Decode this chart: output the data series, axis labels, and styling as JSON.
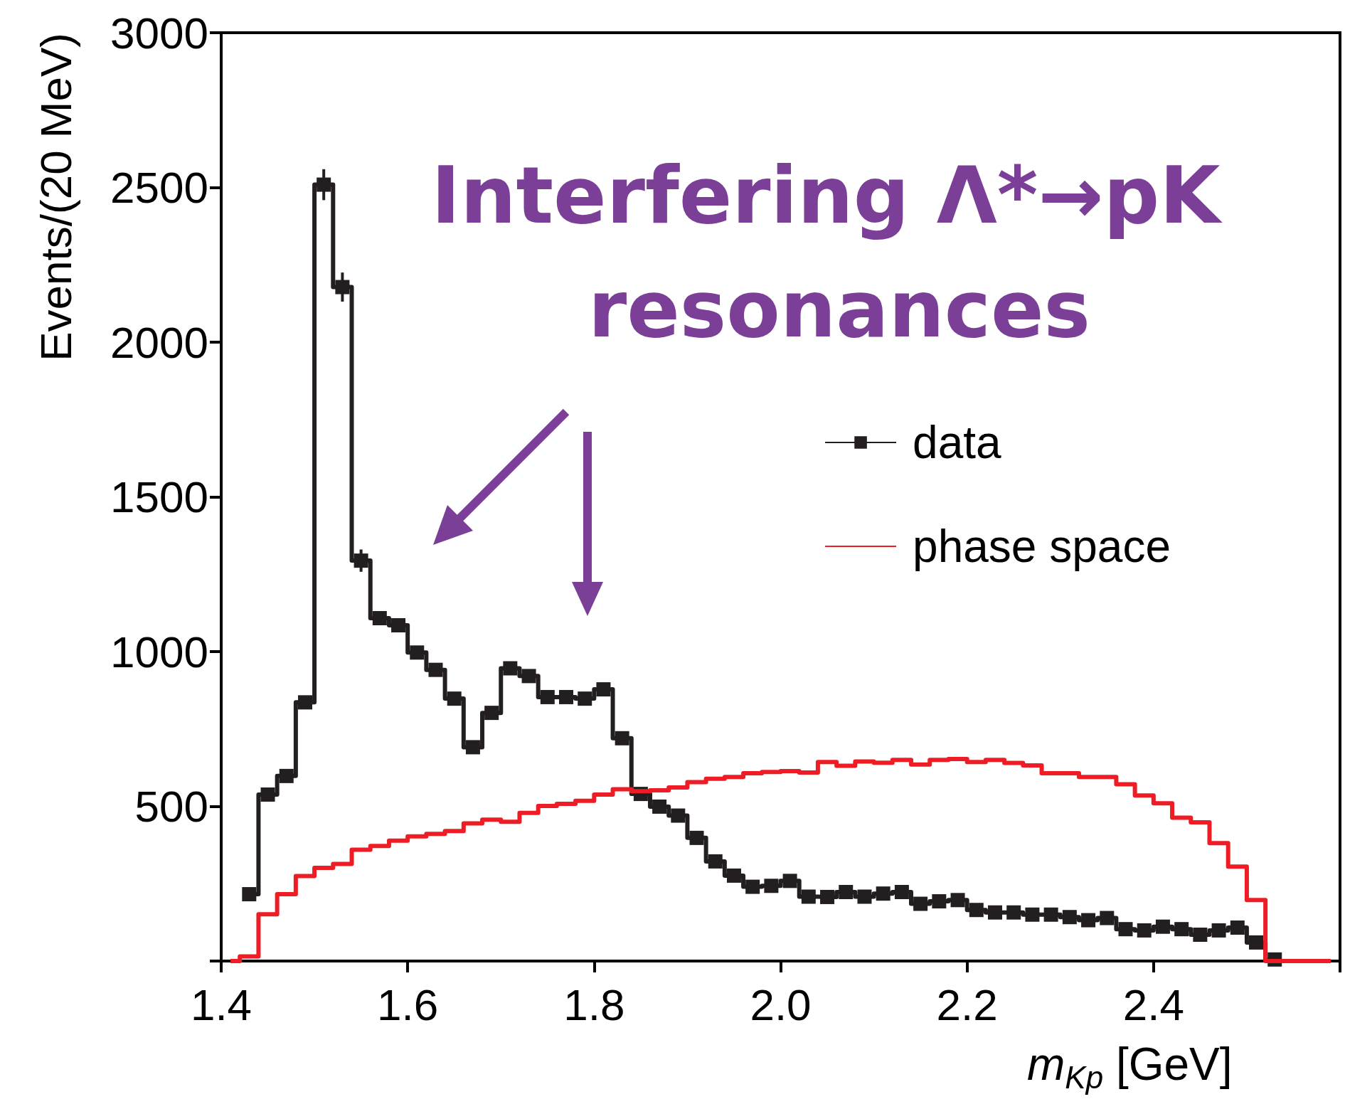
{
  "chart_data": {
    "type": "step",
    "title": "Interfering Λ*→pK resonances",
    "xlabel": "m$_{Kp}$ [GeV]",
    "ylabel": "Events/(20 MeV)",
    "xlim": [
      1.4,
      2.6
    ],
    "xticks": [
      {
        "value": 1.4,
        "label": "1.4"
      },
      {
        "value": 1.6,
        "label": "1.6"
      },
      {
        "value": 1.8,
        "label": "1.8"
      },
      {
        "value": 2.0,
        "label": "2.0"
      },
      {
        "value": 2.2,
        "label": "2.2"
      },
      {
        "value": 2.4,
        "label": "2.4"
      },
      {
        "value": 2.6,
        "label": null
      }
    ],
    "ylim": [
      0,
      3000
    ],
    "yticks": [
      {
        "value": 0,
        "label": null
      },
      500,
      1000,
      1500,
      2000,
      2500,
      3000
    ],
    "legend": "right",
    "grid": false,
    "series": [
      {
        "name": "data",
        "color": "#231f20",
        "marker": "square",
        "x": [
          1.43,
          1.45,
          1.47,
          1.49,
          1.51,
          1.53,
          1.55,
          1.57,
          1.59,
          1.61,
          1.63,
          1.65,
          1.67,
          1.69,
          1.71,
          1.73,
          1.75,
          1.77,
          1.79,
          1.81,
          1.83,
          1.85,
          1.87,
          1.89,
          1.91,
          1.93,
          1.95,
          1.97,
          1.99,
          2.01,
          2.03,
          2.05,
          2.07,
          2.09,
          2.11,
          2.13,
          2.15,
          2.17,
          2.19,
          2.21,
          2.23,
          2.25,
          2.27,
          2.29,
          2.31,
          2.33,
          2.35,
          2.37,
          2.39,
          2.41,
          2.43,
          2.45,
          2.47,
          2.49,
          2.51,
          2.53
        ],
        "values": [
          216,
          538,
          598,
          836,
          2509,
          2178,
          1294,
          1108,
          1085,
          997,
          941,
          848,
          691,
          802,
          946,
          921,
          853,
          853,
          848,
          878,
          720,
          540,
          499,
          470,
          398,
          322,
          276,
          240,
          243,
          259,
          208,
          207,
          223,
          208,
          218,
          223,
          185,
          193,
          197,
          165,
          157,
          157,
          150,
          150,
          142,
          132,
          139,
          103,
          99,
          111,
          103,
          85,
          99,
          108,
          60,
          5
        ],
        "errors": [
          null,
          null,
          null,
          null,
          50,
          47,
          36,
          null,
          null,
          null,
          null,
          null,
          null,
          null,
          null,
          null,
          null,
          null,
          null,
          null,
          null,
          null,
          null,
          null,
          null,
          null,
          null,
          null,
          null,
          null,
          null,
          null,
          null,
          null,
          null,
          null,
          null,
          null,
          null,
          null,
          null,
          null,
          null,
          null,
          null,
          null,
          null,
          null,
          null,
          null,
          null,
          null,
          null,
          null,
          null,
          null
        ]
      },
      {
        "name": "phase space",
        "color": "#ee1c25",
        "marker": "none",
        "x": [
          1.41,
          1.43,
          1.45,
          1.47,
          1.49,
          1.51,
          1.53,
          1.55,
          1.57,
          1.59,
          1.61,
          1.63,
          1.65,
          1.67,
          1.69,
          1.71,
          1.73,
          1.75,
          1.77,
          1.79,
          1.81,
          1.83,
          1.85,
          1.87,
          1.89,
          1.91,
          1.93,
          1.95,
          1.97,
          1.99,
          2.01,
          2.03,
          2.05,
          2.07,
          2.09,
          2.11,
          2.13,
          2.15,
          2.17,
          2.19,
          2.21,
          2.23,
          2.25,
          2.27,
          2.29,
          2.31,
          2.33,
          2.35,
          2.37,
          2.39,
          2.41,
          2.43,
          2.45,
          2.47,
          2.49,
          2.51,
          2.53,
          2.55,
          2.57,
          2.59
        ],
        "values": [
          0,
          15,
          151,
          216,
          275,
          301,
          314,
          360,
          372,
          389,
          403,
          411,
          420,
          445,
          457,
          450,
          479,
          501,
          508,
          518,
          538,
          555,
          549,
          552,
          561,
          578,
          589,
          595,
          607,
          611,
          614,
          609,
          643,
          631,
          645,
          641,
          650,
          635,
          650,
          653,
          643,
          650,
          640,
          632,
          607,
          607,
          595,
          595,
          571,
          535,
          510,
          463,
          448,
          381,
          305,
          197,
          0,
          0,
          0,
          0
        ]
      }
    ]
  }
}
